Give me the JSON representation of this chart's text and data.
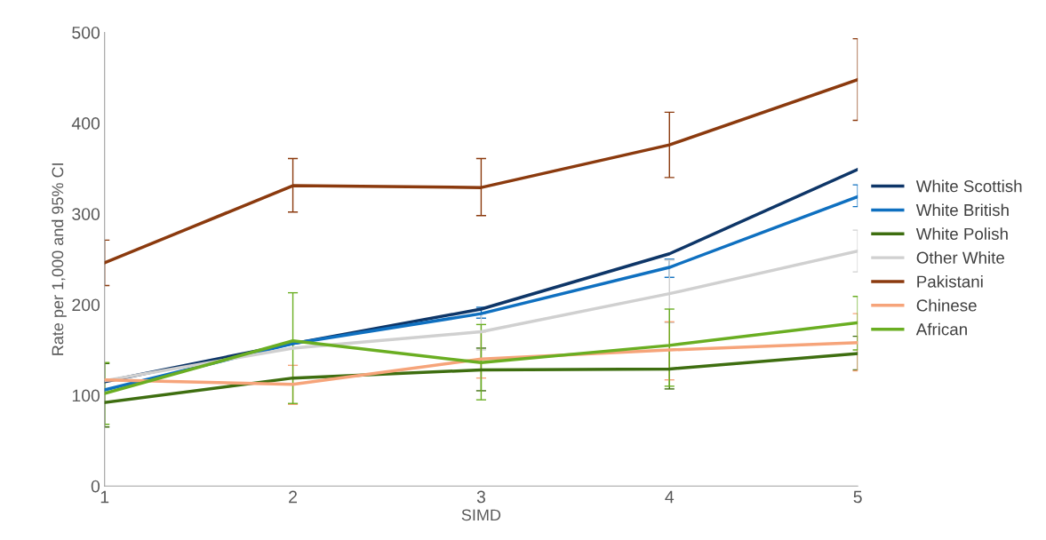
{
  "chart_data": {
    "type": "line",
    "xlabel": "SIMD",
    "ylabel": "Rate per 1,000 and 95% CI",
    "x": [
      1,
      2,
      3,
      4,
      5
    ],
    "xlim": [
      1,
      5
    ],
    "xticks": [
      1,
      2,
      3,
      4,
      5
    ],
    "ylim": [
      0,
      500
    ],
    "yticks": [
      0,
      100,
      200,
      300,
      400,
      500
    ],
    "grid": false,
    "legend": "right",
    "series": [
      {
        "name": "White Scottish",
        "color": "#0e3668",
        "values": [
          115,
          157,
          195,
          256,
          349
        ],
        "errors": [
          null,
          null,
          null,
          null,
          null
        ]
      },
      {
        "name": "White British",
        "color": "#0f70c0",
        "values": [
          106,
          157,
          190,
          241,
          319
        ],
        "errors": [
          null,
          null,
          [
            185,
            197
          ],
          [
            230,
            250
          ],
          [
            308,
            332
          ]
        ]
      },
      {
        "name": "White Polish",
        "color": "#3e6e10",
        "values": [
          92,
          119,
          128,
          129,
          146
        ],
        "errors": [
          [
            65,
            135
          ],
          null,
          [
            105,
            152
          ],
          [
            107,
            150
          ],
          [
            128,
            165
          ]
        ]
      },
      {
        "name": "Other White",
        "color": "#d0d0d0",
        "values": [
          116,
          152,
          170,
          212,
          259
        ],
        "errors": [
          null,
          null,
          [
            150,
            190
          ],
          [
            180,
            249
          ],
          [
            236,
            282
          ]
        ]
      },
      {
        "name": "Pakistani",
        "color": "#8b3a0e",
        "values": [
          246,
          331,
          329,
          376,
          448
        ],
        "errors": [
          [
            221,
            271
          ],
          [
            302,
            361
          ],
          [
            298,
            361
          ],
          [
            340,
            412
          ],
          [
            403,
            493
          ]
        ]
      },
      {
        "name": "Chinese",
        "color": "#f6a47a",
        "values": [
          117,
          112,
          140,
          150,
          158
        ],
        "errors": [
          null,
          [
            90,
            133
          ],
          [
            119,
            170
          ],
          [
            117,
            181
          ],
          [
            127,
            190
          ]
        ]
      },
      {
        "name": "African",
        "color": "#6aae22",
        "values": [
          102,
          160,
          136,
          155,
          180
        ],
        "errors": [
          [
            68,
            136
          ],
          [
            91,
            213
          ],
          [
            95,
            178
          ],
          [
            110,
            195
          ],
          [
            150,
            209
          ]
        ]
      }
    ]
  }
}
